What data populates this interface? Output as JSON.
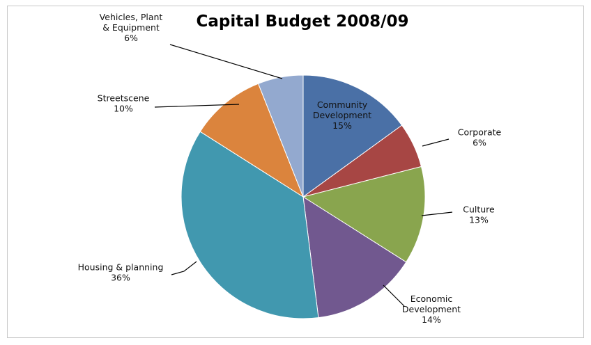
{
  "chart_data": {
    "type": "pie",
    "title": "Capital Budget 2008/09",
    "slices": [
      {
        "label_lines": [
          "Community",
          "Development"
        ],
        "pct_label": "15%",
        "value": 15,
        "color": "#4a70a6"
      },
      {
        "label_lines": [
          "Corporate"
        ],
        "pct_label": "6%",
        "value": 6,
        "color": "#a74644"
      },
      {
        "label_lines": [
          "Culture"
        ],
        "pct_label": "13%",
        "value": 13,
        "color": "#89a54e"
      },
      {
        "label_lines": [
          "Economic",
          "Development"
        ],
        "pct_label": "14%",
        "value": 14,
        "color": "#71588f"
      },
      {
        "label_lines": [
          "Housing & planning"
        ],
        "pct_label": "36%",
        "value": 36,
        "color": "#4198af"
      },
      {
        "label_lines": [
          "Streetscene"
        ],
        "pct_label": "10%",
        "value": 10,
        "color": "#db843d"
      },
      {
        "label_lines": [
          "Vehicles, Plant",
          "& Equipment"
        ],
        "pct_label": "6%",
        "value": 6,
        "color": "#93a9cf"
      }
    ]
  }
}
